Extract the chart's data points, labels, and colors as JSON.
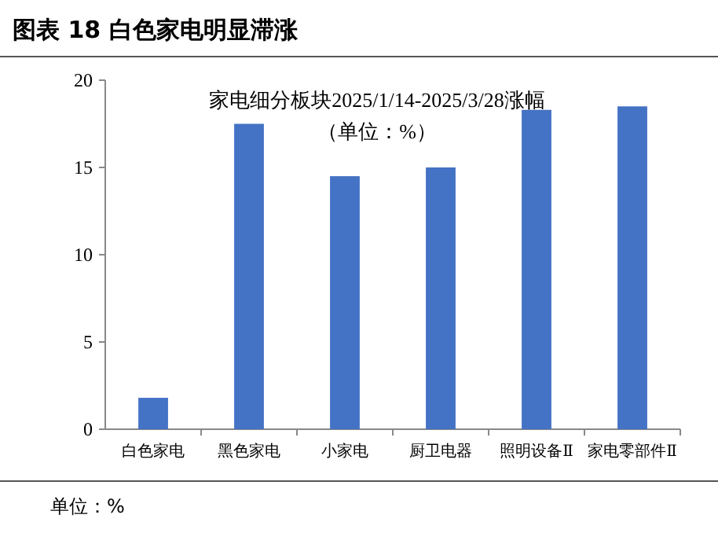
{
  "chart_data": {
    "type": "bar",
    "title": "图表 18 白色家电明显滞涨",
    "subtitle": "家电细分板块2025/1/14-2025/3/28涨幅",
    "categories": [
      "白色家电",
      "黑色家电",
      "小家电",
      "厨卫电器",
      "照明设备Ⅱ",
      "家电零部件Ⅱ"
    ],
    "values": [
      1.8,
      17.5,
      14.5,
      15.0,
      18.3,
      18.5
    ],
    "color": "#4472c4",
    "ylim": [
      0,
      20
    ],
    "yticks": [
      0,
      5,
      10,
      15,
      20
    ],
    "grid": false,
    "annotations": [
      "（单位：%）",
      "单位：%"
    ]
  }
}
